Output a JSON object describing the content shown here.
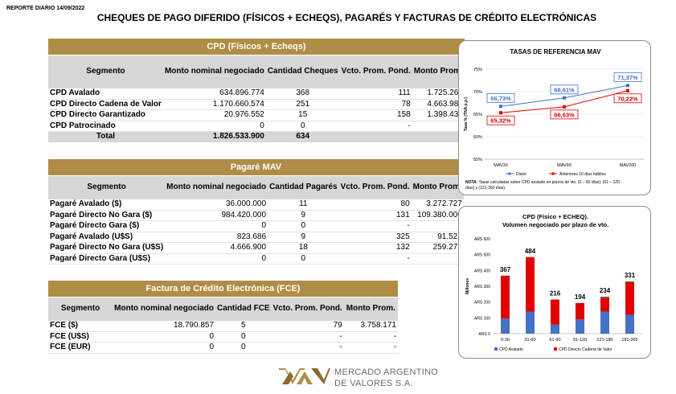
{
  "report_date": "REPORTE DIARIO 14/09/2022",
  "main_title": "CHEQUES DE PAGO DIFERIDO (FÍSICOS + ECHEQS), PAGARÉS Y FACTURAS DE CRÉDITO ELECTRÓNICAS",
  "cpd": {
    "title": "CPD (Físicos + Echeqs)",
    "headers": [
      "Segmento",
      "Monto nominal negociado",
      "Cantidad Cheques",
      "Vcto. Prom. Pond.",
      "Monto Prom."
    ],
    "rows": [
      [
        "CPD Avalado",
        "634.896.774",
        "368",
        "111",
        "1.725.263"
      ],
      [
        "CPD Directo Cadena de Valor",
        "1.170.660.574",
        "251",
        "78",
        "4.663.986"
      ],
      [
        "CPD Directo Garantizado",
        "20.976.552",
        "15",
        "158",
        "1.398.437"
      ],
      [
        "CPD Patrocinado",
        "0",
        "0",
        "-",
        "-"
      ]
    ],
    "total": [
      "Total",
      "1.826.533.900",
      "634",
      "",
      ""
    ]
  },
  "pagare": {
    "title": "Pagaré MAV",
    "headers": [
      "Segmento",
      "Monto nominal negociado",
      "Cantidad Pagarés",
      "Vcto. Prom. Pond.",
      "Monto Prom."
    ],
    "rows": [
      [
        "Pagaré Avalado ($)",
        "36.000.000",
        "11",
        "80",
        "3.272.727"
      ],
      [
        "Pagaré Directo No Gara ($)",
        "984.420.000",
        "9",
        "131",
        "109.380.000"
      ],
      [
        "Pagaré Directo Gara ($)",
        "0",
        "0",
        "-",
        "-"
      ],
      [
        "Pagaré Avalado (U$S)",
        "823.686",
        "9",
        "325",
        "91.521"
      ],
      [
        "Pagaré Directo No Gara (U$S)",
        "4.666.900",
        "18",
        "132",
        "259.272"
      ],
      [
        "Pagaré Directo Gara (U$S)",
        "0",
        "0",
        "-",
        "-"
      ]
    ]
  },
  "fce": {
    "title": "Factura de Crédito Electrónica (FCE)",
    "headers": [
      "Segmento",
      "Monto nominal negociado",
      "Cantidad FCE",
      "Vcto. Prom. Pond.",
      "Monto Prom."
    ],
    "rows": [
      [
        "FCE ($)",
        "18.790.857",
        "5",
        "79",
        "3.758.171"
      ],
      [
        "FCE (U$S)",
        "0",
        "0",
        "-",
        "-"
      ],
      [
        "FCE (EUR)",
        "0",
        "0",
        "-",
        "-"
      ]
    ]
  },
  "chart_data": [
    {
      "type": "line",
      "title": "TASAS DE REFERENCIA MAV",
      "xlabel": "",
      "ylabel": "Tasa % (TNA p.p.)",
      "categories": [
        "MAV30",
        "MAV90",
        "MAV200"
      ],
      "ylim": [
        55,
        75
      ],
      "yticks": [
        "55%",
        "60%",
        "65%",
        "70%",
        "75%"
      ],
      "grid": true,
      "legend": "bottom",
      "series": [
        {
          "name": "Diario",
          "color": "#4472c4",
          "values": [
            66.73,
            68.61,
            71.37
          ],
          "labels": [
            "66,73%",
            "68,61%",
            "71,37%"
          ]
        },
        {
          "name": "Anteriores 10 días hábiles",
          "color": "#e00000",
          "values": [
            65.32,
            66.63,
            70.22
          ],
          "labels": [
            "65,32%",
            "66,63%",
            "70,22%"
          ]
        }
      ],
      "note_label": "NOTA",
      "note": ": Tasas calculadas sobre CPD avalado en plazos de vto. (0 – 60 días); (61 – 120 días) y (121-360 días)."
    },
    {
      "type": "bar",
      "stacked": true,
      "title": "CPD (Físico + ECHEQ).",
      "subtitle": "Volumen negociado por plazo de vto.",
      "ylabel": "Millones",
      "categories": [
        "0-30",
        "31-60",
        "61-90",
        "91-120",
        "121-180",
        "181-365"
      ],
      "ylim": [
        0,
        600
      ],
      "yticks": [
        "ARS 0",
        "ARS 100",
        "ARS 200",
        "ARS 300",
        "ARS 400",
        "ARS 500",
        "ARS 600"
      ],
      "totals": [
        "367",
        "484",
        "216",
        "194",
        "234",
        "331"
      ],
      "legend": "bottom",
      "series": [
        {
          "name": "CPD Avalado",
          "color": "#4472c4",
          "values": [
            95,
            140,
            58,
            90,
            140,
            120
          ]
        },
        {
          "name": "CPD Directo Cadena de Valor",
          "color": "#e00000",
          "values": [
            272,
            344,
            158,
            104,
            88,
            206
          ]
        },
        {
          "name": "",
          "color": "#2e7d32",
          "values": [
            0,
            0,
            0,
            0,
            6,
            5
          ]
        }
      ]
    }
  ],
  "logo_text": [
    "MERCADO ARGENTINO",
    "DE VALORES S.A."
  ],
  "colors": {
    "band": "#b08d46",
    "header": "#d7d7d7",
    "blue": "#4472c4",
    "red": "#e00000"
  }
}
